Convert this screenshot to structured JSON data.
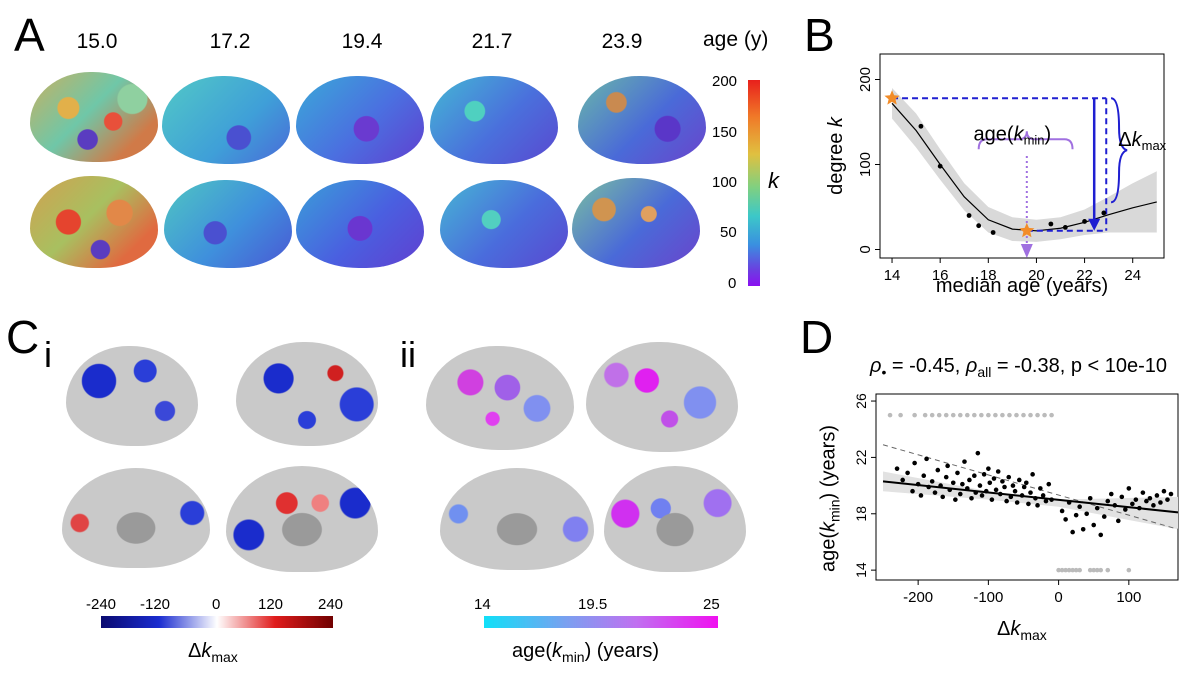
{
  "panelA": {
    "letter": "A",
    "ages": [
      "15.0",
      "17.2",
      "19.4",
      "21.7",
      "23.9"
    ],
    "age_unit": "age (y)",
    "colorbar": {
      "ticks": [
        "200",
        "150",
        "100",
        "50",
        "0"
      ],
      "label": "k"
    }
  },
  "panelB": {
    "letter": "B",
    "ylabel_main": "degree ",
    "ylabel_var": "k",
    "xlabel": "median age (years)",
    "xticks": [
      "14",
      "16",
      "18",
      "20",
      "22",
      "24"
    ],
    "yticks": [
      "0",
      "100",
      "200"
    ],
    "annotation_age_main": "age(",
    "annotation_age_var": "k",
    "annotation_age_sub": "min",
    "annotation_age_close": ")",
    "annotation_delta_main": "Δ",
    "annotation_delta_var": "k",
    "annotation_delta_sub": "max",
    "colors": {
      "star": "#f28c28",
      "dash": "#1f1fd1",
      "arrow_purple": "#a070e0",
      "ribbon": "#d9d9d9"
    }
  },
  "panelC": {
    "letter": "C",
    "sub_i": "i",
    "sub_ii": "ii",
    "colorbar_i": {
      "ticks": [
        "-240",
        "-120",
        "0",
        "120",
        "240"
      ],
      "label_main": "Δ",
      "label_var": "k",
      "label_sub": "max"
    },
    "colorbar_ii": {
      "ticks": [
        "14",
        "19.5",
        "25"
      ],
      "label_main": "age(",
      "label_var": "k",
      "label_sub": "min",
      "label_close": ") (years)"
    }
  },
  "panelD": {
    "letter": "D",
    "stat_rho": "ρ",
    "stat_rho_sub": "•",
    "stat_rho_val": " = -0.45, ",
    "stat_rho_all": "ρ",
    "stat_rho_all_sub": "all",
    "stat_rest": " = -0.38, p < 10e-10",
    "ylabel_main": "age(",
    "ylabel_var": "k",
    "ylabel_sub": "min",
    "ylabel_close": ") (years)",
    "xlabel_main": "Δ",
    "xlabel_var": "k",
    "xlabel_sub": "max",
    "xticks": [
      "-200",
      "-100",
      "0",
      "100"
    ],
    "yticks": [
      "14",
      "18",
      "22",
      "26"
    ]
  },
  "chart_data": [
    {
      "type": "scatter",
      "panel": "B",
      "x_range": [
        13.5,
        25.3
      ],
      "y_range": [
        -10,
        230
      ],
      "xlabel": "median age (years)",
      "ylabel": "degree k",
      "points": [
        {
          "x": 14.0,
          "y": 178
        },
        {
          "x": 15.2,
          "y": 145
        },
        {
          "x": 16.0,
          "y": 98
        },
        {
          "x": 17.2,
          "y": 40
        },
        {
          "x": 17.6,
          "y": 28
        },
        {
          "x": 18.2,
          "y": 20
        },
        {
          "x": 19.6,
          "y": 23
        },
        {
          "x": 20.6,
          "y": 30
        },
        {
          "x": 21.2,
          "y": 26
        },
        {
          "x": 22.0,
          "y": 33
        },
        {
          "x": 22.8,
          "y": 43
        }
      ],
      "fit": [
        {
          "x": 14.0,
          "y": 172
        },
        {
          "x": 15.0,
          "y": 140
        },
        {
          "x": 16.0,
          "y": 100
        },
        {
          "x": 17.0,
          "y": 62
        },
        {
          "x": 18.0,
          "y": 35
        },
        {
          "x": 19.0,
          "y": 24
        },
        {
          "x": 20.0,
          "y": 22
        },
        {
          "x": 21.0,
          "y": 25
        },
        {
          "x": 22.0,
          "y": 32
        },
        {
          "x": 23.0,
          "y": 41
        },
        {
          "x": 24.0,
          "y": 49
        },
        {
          "x": 25.0,
          "y": 56
        }
      ],
      "ci_upper": [
        190,
        160,
        118,
        78,
        50,
        38,
        35,
        38,
        47,
        62,
        78,
        92
      ],
      "ci_lower": [
        154,
        120,
        82,
        46,
        20,
        10,
        9,
        12,
        17,
        20,
        20,
        20
      ],
      "k_max": {
        "x": 14.0,
        "y": 178
      },
      "k_min": {
        "x": 19.6,
        "y": 22
      },
      "k_min_age": 19.6,
      "delta_k_max_x": 22.4
    },
    {
      "type": "scatter",
      "panel": "D",
      "x_range": [
        -260,
        170
      ],
      "y_range": [
        13.3,
        26.5
      ],
      "xlabel": "Δk_max",
      "ylabel": "age(k_min) (years)",
      "fit_line": [
        {
          "x": -250,
          "y": 20.3
        },
        {
          "x": 170,
          "y": 18.1
        }
      ],
      "fit_dashed": [
        {
          "x": -250,
          "y": 22.9
        },
        {
          "x": 170,
          "y": 16.9
        }
      ],
      "series": [
        {
          "name": "regions",
          "color": "#000000",
          "points": [
            [
              -230,
              21.2
            ],
            [
              -222,
              20.4
            ],
            [
              -215,
              20.9
            ],
            [
              -208,
              19.6
            ],
            [
              -205,
              21.6
            ],
            [
              -200,
              20.1
            ],
            [
              -196,
              19.3
            ],
            [
              -192,
              20.7
            ],
            [
              -188,
              21.9
            ],
            [
              -185,
              19.9
            ],
            [
              -180,
              20.3
            ],
            [
              -176,
              19.5
            ],
            [
              -172,
              21.1
            ],
            [
              -168,
              20.0
            ],
            [
              -165,
              19.2
            ],
            [
              -160,
              20.6
            ],
            [
              -158,
              21.4
            ],
            [
              -155,
              19.7
            ],
            [
              -150,
              20.2
            ],
            [
              -147,
              19.0
            ],
            [
              -144,
              20.9
            ],
            [
              -140,
              19.4
            ],
            [
              -137,
              20.1
            ],
            [
              -134,
              21.7
            ],
            [
              -130,
              19.8
            ],
            [
              -127,
              20.4
            ],
            [
              -124,
              19.1
            ],
            [
              -120,
              20.7
            ],
            [
              -118,
              19.5
            ],
            [
              -115,
              22.3
            ],
            [
              -112,
              20.0
            ],
            [
              -109,
              19.3
            ],
            [
              -106,
              20.8
            ],
            [
              -103,
              19.6
            ],
            [
              -100,
              21.2
            ],
            [
              -98,
              20.2
            ],
            [
              -95,
              19.0
            ],
            [
              -92,
              20.5
            ],
            [
              -89,
              19.7
            ],
            [
              -86,
              21.0
            ],
            [
              -83,
              19.4
            ],
            [
              -80,
              20.3
            ],
            [
              -77,
              19.9
            ],
            [
              -74,
              18.9
            ],
            [
              -71,
              20.6
            ],
            [
              -68,
              19.2
            ],
            [
              -65,
              20.0
            ],
            [
              -62,
              19.6
            ],
            [
              -59,
              18.8
            ],
            [
              -56,
              20.4
            ],
            [
              -52,
              19.3
            ],
            [
              -49,
              19.9
            ],
            [
              -46,
              20.2
            ],
            [
              -43,
              18.7
            ],
            [
              -40,
              19.5
            ],
            [
              -37,
              20.8
            ],
            [
              -33,
              19.1
            ],
            [
              -30,
              18.6
            ],
            [
              -26,
              19.8
            ],
            [
              -22,
              19.3
            ],
            [
              -18,
              18.9
            ],
            [
              -14,
              20.1
            ],
            [
              -10,
              19.0
            ],
            [
              5,
              18.2
            ],
            [
              10,
              17.6
            ],
            [
              15,
              18.8
            ],
            [
              20,
              16.7
            ],
            [
              25,
              17.9
            ],
            [
              30,
              18.5
            ],
            [
              35,
              16.9
            ],
            [
              40,
              18.0
            ],
            [
              45,
              19.1
            ],
            [
              50,
              17.2
            ],
            [
              55,
              18.4
            ],
            [
              60,
              16.5
            ],
            [
              65,
              17.8
            ],
            [
              70,
              18.9
            ],
            [
              75,
              19.4
            ],
            [
              80,
              18.6
            ],
            [
              85,
              17.5
            ],
            [
              90,
              19.2
            ],
            [
              95,
              18.3
            ],
            [
              100,
              19.8
            ],
            [
              105,
              18.7
            ],
            [
              110,
              19.0
            ],
            [
              115,
              18.4
            ],
            [
              120,
              19.5
            ],
            [
              125,
              18.9
            ],
            [
              130,
              19.1
            ],
            [
              135,
              18.6
            ],
            [
              140,
              19.3
            ],
            [
              145,
              18.8
            ],
            [
              150,
              19.6
            ],
            [
              155,
              19.0
            ],
            [
              160,
              19.4
            ]
          ]
        },
        {
          "name": "excluded",
          "color": "#bbbbbb",
          "points": [
            [
              -240,
              25
            ],
            [
              -225,
              25
            ],
            [
              -205,
              25
            ],
            [
              -190,
              25
            ],
            [
              -180,
              25
            ],
            [
              -170,
              25
            ],
            [
              -160,
              25
            ],
            [
              -150,
              25
            ],
            [
              -140,
              25
            ],
            [
              -130,
              25
            ],
            [
              -120,
              25
            ],
            [
              -110,
              25
            ],
            [
              -100,
              25
            ],
            [
              -90,
              25
            ],
            [
              -80,
              25
            ],
            [
              -70,
              25
            ],
            [
              -60,
              25
            ],
            [
              -50,
              25
            ],
            [
              -40,
              25
            ],
            [
              -30,
              25
            ],
            [
              -20,
              25
            ],
            [
              -10,
              25
            ],
            [
              0,
              14
            ],
            [
              5,
              14
            ],
            [
              10,
              14
            ],
            [
              15,
              14
            ],
            [
              20,
              14
            ],
            [
              25,
              14
            ],
            [
              30,
              14
            ],
            [
              45,
              14
            ],
            [
              50,
              14
            ],
            [
              55,
              14
            ],
            [
              60,
              14
            ],
            [
              70,
              14
            ],
            [
              100,
              14
            ]
          ]
        }
      ]
    }
  ]
}
